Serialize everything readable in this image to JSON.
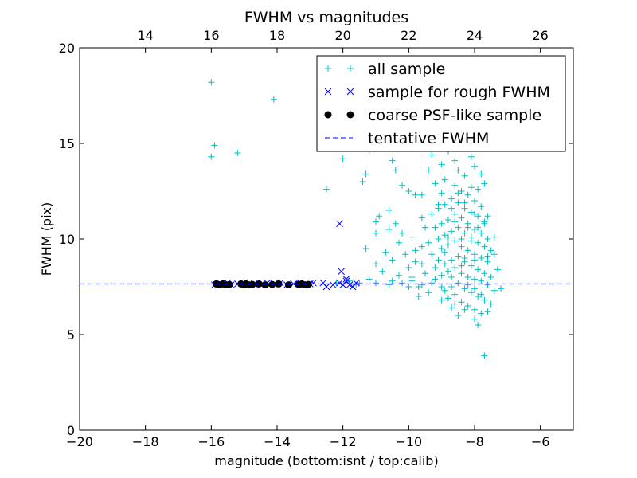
{
  "chart_data": {
    "type": "scatter",
    "title": "FWHM vs magnitudes",
    "xlabel": "magnitude (bottom:isnt / top:calib)",
    "ylabel": "FWHM (pix)",
    "xlim": [
      -20,
      -5
    ],
    "ylim": [
      0,
      20
    ],
    "x_ticks": [
      -20,
      -18,
      -16,
      -14,
      -12,
      -10,
      -8,
      -6
    ],
    "x_tick_labels": [
      "−20",
      "−18",
      "−16",
      "−14",
      "−12",
      "−10",
      "−8",
      "−6"
    ],
    "y_ticks": [
      0,
      5,
      10,
      15,
      20
    ],
    "y_tick_labels": [
      "0",
      "5",
      "10",
      "15",
      "20"
    ],
    "top_axis": {
      "offset": 32,
      "ticks": [
        14,
        16,
        18,
        20,
        22,
        24,
        26
      ],
      "tick_labels": [
        "14",
        "16",
        "18",
        "20",
        "22",
        "24",
        "26"
      ]
    },
    "grid": false,
    "legend_position": "top-right",
    "series": [
      {
        "name": "all sample",
        "marker": "plus",
        "color": "#00bfbf",
        "points": [
          [
            -16.0,
            18.2
          ],
          [
            -15.9,
            14.9
          ],
          [
            -16.0,
            14.3
          ],
          [
            -15.2,
            14.5
          ],
          [
            -14.1,
            17.3
          ],
          [
            -12.5,
            12.6
          ],
          [
            -12.0,
            14.2
          ],
          [
            -11.4,
            13.0
          ],
          [
            -11.3,
            13.4
          ],
          [
            -11.2,
            14.6
          ],
          [
            -10.5,
            14.1
          ],
          [
            -10.4,
            13.6
          ],
          [
            -10.2,
            12.8
          ],
          [
            -10.0,
            12.5
          ],
          [
            -10.6,
            11.5
          ],
          [
            -10.9,
            11.2
          ],
          [
            -11.0,
            10.9
          ],
          [
            -10.4,
            10.8
          ],
          [
            -10.2,
            10.3
          ],
          [
            -10.6,
            10.5
          ],
          [
            -11.0,
            10.3
          ],
          [
            -10.3,
            9.8
          ],
          [
            -10.7,
            9.3
          ],
          [
            -11.3,
            9.5
          ],
          [
            -10.1,
            9.2
          ],
          [
            -9.8,
            9.4
          ],
          [
            -10.5,
            8.9
          ],
          [
            -11.0,
            8.7
          ],
          [
            -10.0,
            8.5
          ],
          [
            -9.6,
            8.7
          ],
          [
            -10.8,
            8.3
          ],
          [
            -10.3,
            8.1
          ],
          [
            -9.9,
            8.0
          ],
          [
            -11.2,
            7.9
          ],
          [
            -10.5,
            7.8
          ],
          [
            -11.8,
            7.8
          ],
          [
            -11.5,
            7.7
          ],
          [
            -11.0,
            7.7
          ],
          [
            -10.6,
            7.6
          ],
          [
            -10.2,
            7.7
          ],
          [
            -9.9,
            7.8
          ],
          [
            -9.6,
            7.6
          ],
          [
            -9.3,
            7.7
          ],
          [
            -9.0,
            7.5
          ],
          [
            -12.2,
            7.7
          ],
          [
            -11.6,
            7.6
          ],
          [
            -9.4,
            13.6
          ],
          [
            -9.2,
            12.9
          ],
          [
            -9.1,
            11.8
          ],
          [
            -9.6,
            11.1
          ],
          [
            -9.8,
            12.3
          ],
          [
            -9.0,
            13.9
          ],
          [
            -8.8,
            14.6
          ],
          [
            -8.6,
            15.2
          ],
          [
            -8.4,
            15.7
          ],
          [
            -8.2,
            15.9
          ],
          [
            -8.0,
            15.0
          ],
          [
            -7.8,
            13.4
          ],
          [
            -8.5,
            13.6
          ],
          [
            -8.3,
            13.3
          ],
          [
            -8.9,
            13.1
          ],
          [
            -9.3,
            14.4
          ],
          [
            -8.1,
            14.3
          ],
          [
            -7.9,
            12.6
          ],
          [
            -8.6,
            12.8
          ],
          [
            -8.4,
            12.5
          ],
          [
            -8.2,
            12.3
          ],
          [
            -8.0,
            12.0
          ],
          [
            -7.8,
            11.7
          ],
          [
            -8.7,
            12.1
          ],
          [
            -8.9,
            11.8
          ],
          [
            -9.1,
            11.6
          ],
          [
            -8.5,
            11.9
          ],
          [
            -8.3,
            11.6
          ],
          [
            -8.1,
            11.4
          ],
          [
            -7.9,
            11.2
          ],
          [
            -7.7,
            10.9
          ],
          [
            -8.6,
            11.3
          ],
          [
            -8.8,
            11.0
          ],
          [
            -9.0,
            10.8
          ],
          [
            -9.2,
            10.6
          ],
          [
            -8.4,
            11.1
          ],
          [
            -8.2,
            10.8
          ],
          [
            -8.0,
            10.5
          ],
          [
            -7.8,
            10.3
          ],
          [
            -7.6,
            10.0
          ],
          [
            -8.5,
            10.6
          ],
          [
            -8.7,
            10.4
          ],
          [
            -8.9,
            10.2
          ],
          [
            -9.1,
            10.0
          ],
          [
            -8.3,
            10.3
          ],
          [
            -8.1,
            10.1
          ],
          [
            -7.9,
            9.8
          ],
          [
            -7.7,
            9.6
          ],
          [
            -7.5,
            9.4
          ],
          [
            -8.6,
            9.9
          ],
          [
            -8.8,
            9.7
          ],
          [
            -9.0,
            9.5
          ],
          [
            -9.3,
            9.2
          ],
          [
            -8.4,
            9.6
          ],
          [
            -8.2,
            9.4
          ],
          [
            -8.0,
            9.2
          ],
          [
            -7.8,
            9.0
          ],
          [
            -7.6,
            8.8
          ],
          [
            -8.5,
            9.1
          ],
          [
            -8.7,
            8.9
          ],
          [
            -8.9,
            8.7
          ],
          [
            -9.2,
            8.5
          ],
          [
            -8.3,
            8.8
          ],
          [
            -8.1,
            8.6
          ],
          [
            -7.9,
            8.4
          ],
          [
            -7.7,
            8.2
          ],
          [
            -7.5,
            8.0
          ],
          [
            -8.6,
            8.5
          ],
          [
            -8.8,
            8.3
          ],
          [
            -9.0,
            8.1
          ],
          [
            -8.4,
            8.2
          ],
          [
            -8.2,
            8.0
          ],
          [
            -8.0,
            7.9
          ],
          [
            -7.8,
            7.8
          ],
          [
            -7.6,
            7.6
          ],
          [
            -8.5,
            7.7
          ],
          [
            -8.7,
            7.5
          ],
          [
            -8.9,
            7.3
          ],
          [
            -8.3,
            7.4
          ],
          [
            -8.1,
            7.2
          ],
          [
            -7.9,
            7.0
          ],
          [
            -7.7,
            6.8
          ],
          [
            -7.5,
            6.6
          ],
          [
            -8.6,
            7.1
          ],
          [
            -8.8,
            6.9
          ],
          [
            -8.4,
            6.7
          ],
          [
            -8.2,
            6.5
          ],
          [
            -8.0,
            6.3
          ],
          [
            -7.8,
            6.1
          ],
          [
            -7.6,
            6.2
          ],
          [
            -8.0,
            5.8
          ],
          [
            -7.9,
            5.5
          ],
          [
            -7.7,
            3.9
          ],
          [
            -8.5,
            6.0
          ],
          [
            -8.7,
            6.4
          ],
          [
            -9.0,
            6.8
          ],
          [
            -9.4,
            7.2
          ],
          [
            -9.7,
            7.0
          ],
          [
            -9.5,
            8.2
          ],
          [
            -9.4,
            9.8
          ],
          [
            -9.5,
            10.6
          ],
          [
            -9.3,
            11.3
          ],
          [
            -9.6,
            12.3
          ],
          [
            -9.0,
            12.4
          ],
          [
            -8.6,
            14.1
          ],
          [
            -8.3,
            14.8
          ],
          [
            -8.0,
            13.8
          ],
          [
            -7.7,
            12.9
          ],
          [
            -7.6,
            11.2
          ],
          [
            -7.4,
            10.1
          ],
          [
            -7.4,
            9.2
          ],
          [
            -7.3,
            8.4
          ],
          [
            -7.4,
            7.3
          ],
          [
            -7.2,
            7.4
          ],
          [
            -8.1,
            9.9
          ],
          [
            -8.3,
            9.0
          ],
          [
            -8.0,
            8.9
          ],
          [
            -8.2,
            10.6
          ],
          [
            -8.4,
            10.0
          ],
          [
            -8.6,
            10.9
          ],
          [
            -8.8,
            10.1
          ],
          [
            -7.9,
            10.6
          ],
          [
            -7.7,
            10.8
          ],
          [
            -7.6,
            9.1
          ],
          [
            -8.3,
            11.9
          ],
          [
            -8.5,
            12.4
          ],
          [
            -8.7,
            11.6
          ],
          [
            -8.0,
            11.3
          ],
          [
            -8.1,
            12.7
          ],
          [
            -9.6,
            9.6
          ],
          [
            -9.8,
            8.8
          ],
          [
            -9.9,
            10.1
          ],
          [
            -10.0,
            7.5
          ],
          [
            -9.7,
            7.5
          ],
          [
            -9.2,
            7.9
          ],
          [
            -9.1,
            8.9
          ],
          [
            -8.9,
            9.3
          ],
          [
            -8.7,
            8.0
          ],
          [
            -8.4,
            8.6
          ],
          [
            -8.2,
            7.6
          ],
          [
            -8.0,
            7.4
          ],
          [
            -7.8,
            7.1
          ],
          [
            -8.6,
            6.6
          ],
          [
            -8.3,
            6.3
          ]
        ]
      },
      {
        "name": "sample for rough FWHM",
        "marker": "x",
        "color": "#0000ff",
        "points": [
          [
            -15.9,
            7.6
          ],
          [
            -15.7,
            7.65
          ],
          [
            -15.5,
            7.7
          ],
          [
            -15.4,
            7.6
          ],
          [
            -15.2,
            7.65
          ],
          [
            -15.0,
            7.7
          ],
          [
            -14.9,
            7.6
          ],
          [
            -14.7,
            7.65
          ],
          [
            -14.5,
            7.6
          ],
          [
            -14.3,
            7.7
          ],
          [
            -14.1,
            7.65
          ],
          [
            -13.9,
            7.7
          ],
          [
            -13.7,
            7.6
          ],
          [
            -13.5,
            7.65
          ],
          [
            -13.3,
            7.7
          ],
          [
            -13.2,
            7.6
          ],
          [
            -13.0,
            7.65
          ],
          [
            -12.9,
            7.7
          ],
          [
            -12.6,
            7.7
          ],
          [
            -12.5,
            7.5
          ],
          [
            -12.3,
            7.6
          ],
          [
            -12.1,
            7.7
          ],
          [
            -12.0,
            7.6
          ],
          [
            -11.9,
            7.8
          ],
          [
            -11.8,
            7.6
          ],
          [
            -11.7,
            7.5
          ],
          [
            -11.6,
            7.7
          ],
          [
            -11.9,
            7.9
          ],
          [
            -12.05,
            8.3
          ],
          [
            -12.1,
            10.8
          ]
        ]
      },
      {
        "name": "coarse PSF-like sample",
        "marker": "dot",
        "color": "#000000",
        "points": [
          [
            -15.85,
            7.65
          ],
          [
            -15.75,
            7.6
          ],
          [
            -15.65,
            7.65
          ],
          [
            -15.55,
            7.6
          ],
          [
            -15.45,
            7.62
          ],
          [
            -15.1,
            7.65
          ],
          [
            -15.0,
            7.6
          ],
          [
            -14.95,
            7.65
          ],
          [
            -14.85,
            7.6
          ],
          [
            -14.75,
            7.62
          ],
          [
            -14.55,
            7.65
          ],
          [
            -14.35,
            7.6
          ],
          [
            -14.15,
            7.62
          ],
          [
            -13.95,
            7.65
          ],
          [
            -13.65,
            7.6
          ],
          [
            -13.35,
            7.62
          ],
          [
            -13.25,
            7.65
          ],
          [
            -13.15,
            7.6
          ],
          [
            -13.05,
            7.62
          ]
        ]
      },
      {
        "name": "tentative FWHM",
        "marker": "dashed-line",
        "color": "#0000ff",
        "y": 7.65
      }
    ]
  }
}
